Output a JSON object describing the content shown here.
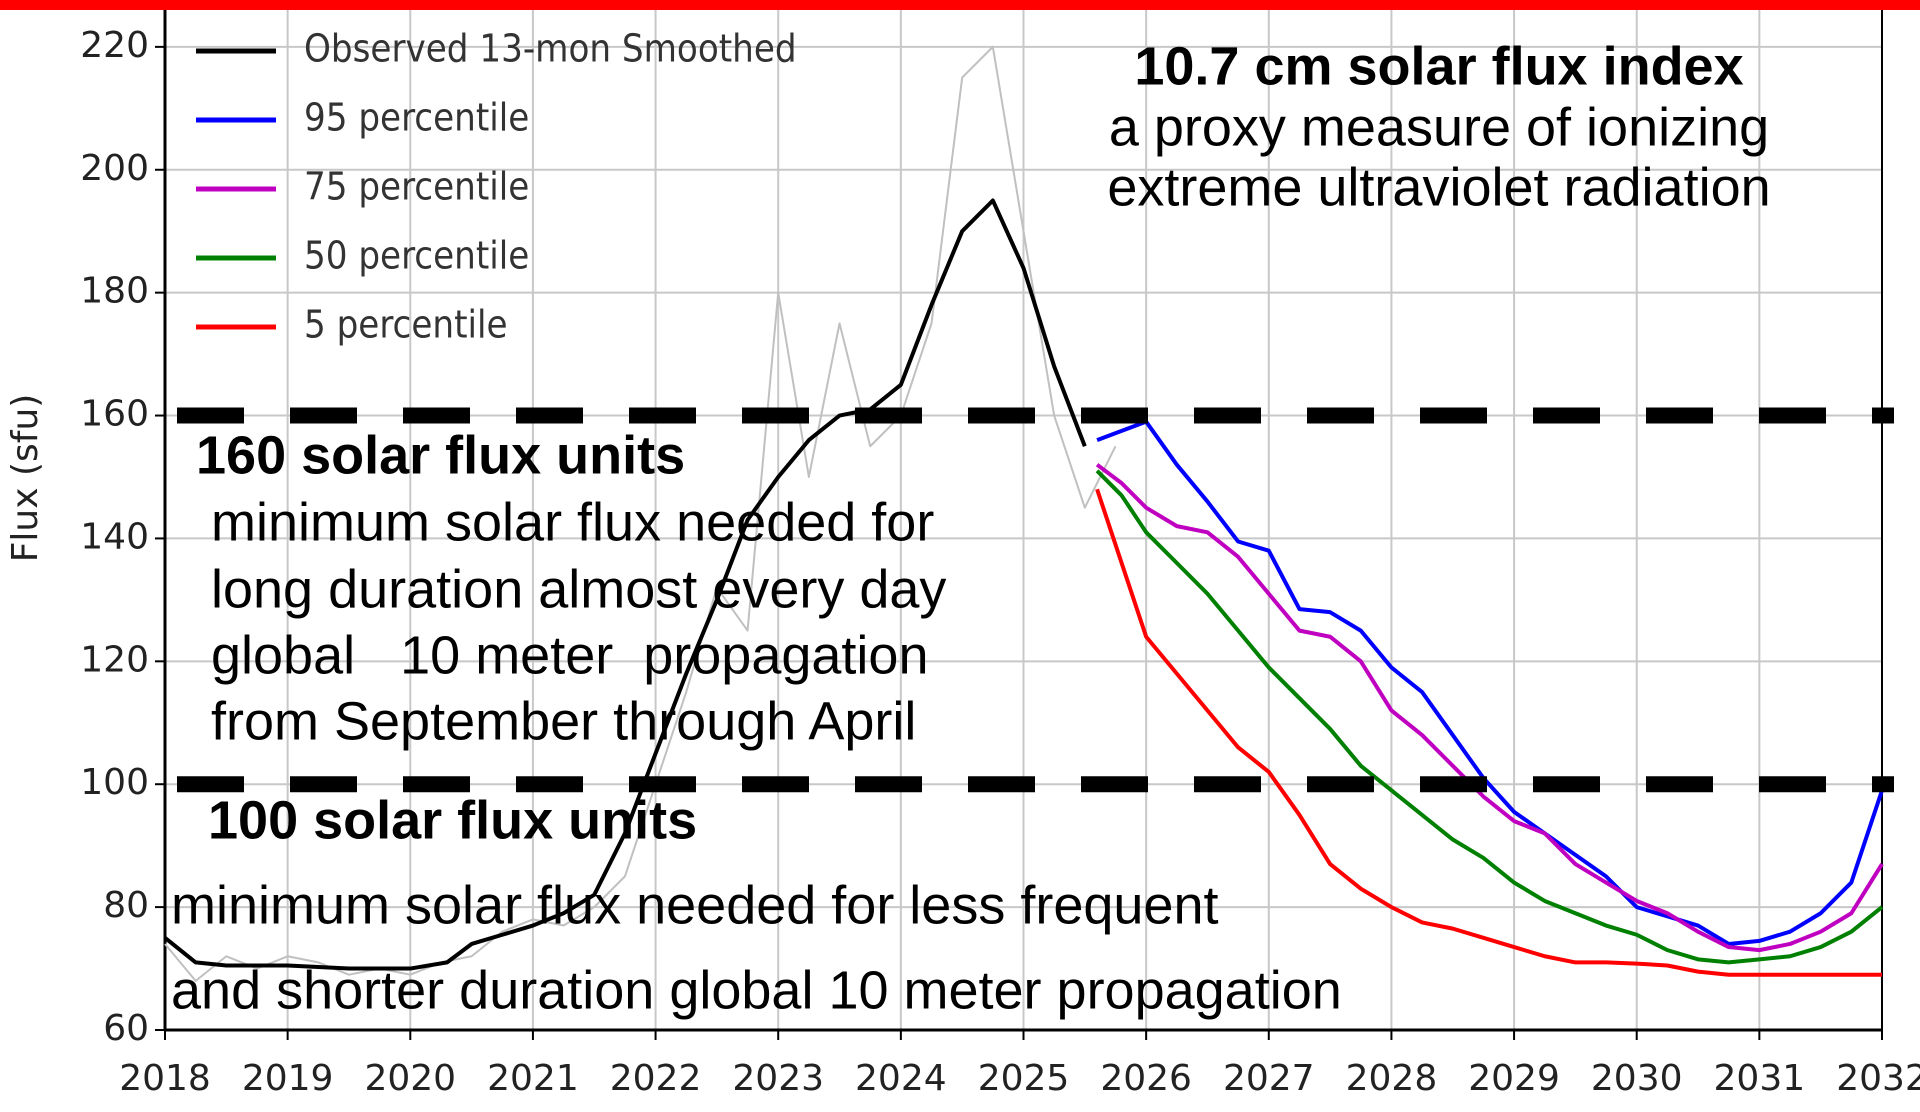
{
  "chart_data": {
    "type": "line",
    "title": "10.7 cm solar flux index",
    "subtitle": [
      "a proxy measure of ionizing",
      "extreme ultraviolet radiation"
    ],
    "y_label": "Flux (sfu)",
    "xlim": [
      2018,
      2032
    ],
    "xticks": [
      2018,
      2019,
      2020,
      2021,
      2022,
      2023,
      2024,
      2025,
      2026,
      2027,
      2028,
      2029,
      2030,
      2031,
      2032
    ],
    "ylim": [
      60,
      226
    ],
    "yticks": [
      60,
      80,
      100,
      120,
      140,
      160,
      180,
      200,
      220
    ],
    "grid": true,
    "legend": "upper left",
    "reference_lines": [
      160,
      100
    ],
    "annotations": [
      "160 solar flux units",
      "minimum solar flux needed for",
      "long duration almost every day",
      "global   10 meter  propagation",
      "from September through April",
      "100 solar flux units",
      "minimum solar flux needed for less frequent",
      "and shorter duration global 10 meter propagation"
    ],
    "series": [
      {
        "color": "#c0c0c0",
        "x": [
          2018,
          2018.25,
          2018.5,
          2018.75,
          2019,
          2019.25,
          2019.5,
          2019.75,
          2020,
          2020.25,
          2020.5,
          2020.75,
          2021,
          2021.25,
          2021.5,
          2021.75,
          2022,
          2022.25,
          2022.5,
          2022.75,
          2023,
          2023.25,
          2023.5,
          2023.75,
          2024,
          2024.25,
          2024.5,
          2024.75,
          2025,
          2025.25,
          2025.5,
          2025.75
        ],
        "values": [
          74,
          68,
          72,
          70,
          72,
          71,
          69,
          70,
          69,
          71,
          72,
          76,
          78,
          77,
          80,
          85,
          100,
          115,
          132,
          125,
          180,
          150,
          175,
          155,
          160,
          175,
          215,
          220,
          190,
          160,
          145,
          155
        ]
      },
      {
        "name": "Observed 13-mon Smoothed",
        "color": "#000000",
        "x": [
          2018,
          2018.25,
          2018.5,
          2019,
          2019.5,
          2020,
          2020.3,
          2020.5,
          2020.75,
          2021,
          2021.25,
          2021.5,
          2021.75,
          2022,
          2022.25,
          2022.5,
          2022.75,
          2023,
          2023.25,
          2023.5,
          2023.75,
          2024,
          2024.25,
          2024.5,
          2024.75,
          2025,
          2025.25,
          2025.5
        ],
        "values": [
          75,
          71,
          70.5,
          70.5,
          70,
          70,
          71,
          74,
          75.5,
          77,
          79,
          82,
          92,
          105,
          118,
          130,
          143,
          150,
          156,
          160,
          161,
          165,
          178,
          190,
          195,
          184,
          168,
          155
        ]
      },
      {
        "name": "95 percentile",
        "color": "#0000ff",
        "x": [
          2025.6,
          2025.8,
          2026,
          2026.25,
          2026.5,
          2026.75,
          2027,
          2027.25,
          2027.5,
          2027.75,
          2028,
          2028.25,
          2028.5,
          2028.75,
          2029,
          2029.25,
          2029.5,
          2029.75,
          2030,
          2030.25,
          2030.5,
          2030.75,
          2031,
          2031.25,
          2031.5,
          2031.75,
          2032
        ],
        "values": [
          156,
          157.5,
          159,
          152,
          146,
          139.5,
          138,
          128.5,
          128,
          125,
          119,
          115,
          108,
          101,
          95.5,
          92,
          88.5,
          85,
          80,
          78.5,
          77,
          74,
          74.5,
          76,
          79,
          84,
          99
        ]
      },
      {
        "name": "75 percentile",
        "color": "#c000c0",
        "x": [
          2025.6,
          2025.8,
          2026,
          2026.25,
          2026.5,
          2026.75,
          2027,
          2027.25,
          2027.5,
          2027.75,
          2028,
          2028.25,
          2028.5,
          2028.75,
          2029,
          2029.25,
          2029.5,
          2029.75,
          2030,
          2030.25,
          2030.5,
          2030.75,
          2031,
          2031.25,
          2031.5,
          2031.75,
          2032
        ],
        "values": [
          152,
          149,
          145,
          142,
          141,
          137,
          131,
          125,
          124,
          120,
          112,
          108,
          103,
          98,
          94,
          92,
          87,
          84,
          81,
          79,
          76,
          73.5,
          73,
          74,
          76,
          79,
          87
        ]
      },
      {
        "name": "50 percentile",
        "color": "#008000",
        "x": [
          2025.6,
          2025.8,
          2026,
          2026.25,
          2026.5,
          2026.75,
          2027,
          2027.25,
          2027.5,
          2027.75,
          2028,
          2028.25,
          2028.5,
          2028.75,
          2029,
          2029.25,
          2029.5,
          2029.75,
          2030,
          2030.25,
          2030.5,
          2030.75,
          2031,
          2031.25,
          2031.5,
          2031.75,
          2032
        ],
        "values": [
          151,
          147,
          141,
          136,
          131,
          125,
          119,
          114,
          109,
          103,
          99,
          95,
          91,
          88,
          84,
          81,
          79,
          77,
          75.5,
          73,
          71.5,
          71,
          71.5,
          72,
          73.5,
          76,
          80
        ]
      },
      {
        "name": "5 percentile",
        "color": "#ff0000",
        "x": [
          2025.6,
          2025.8,
          2026,
          2026.25,
          2026.5,
          2026.75,
          2027,
          2027.25,
          2027.5,
          2027.75,
          2028,
          2028.25,
          2028.5,
          2028.75,
          2029,
          2029.25,
          2029.5,
          2029.75,
          2030,
          2030.25,
          2030.5,
          2030.75,
          2031,
          2031.25,
          2031.5,
          2031.75,
          2032
        ],
        "values": [
          148,
          136,
          124,
          118,
          112,
          106,
          102,
          95,
          87,
          83,
          80,
          77.5,
          76.5,
          75,
          73.5,
          72,
          71,
          71,
          70.8,
          70.5,
          69.5,
          69,
          69,
          69,
          69,
          69,
          69
        ]
      }
    ]
  }
}
